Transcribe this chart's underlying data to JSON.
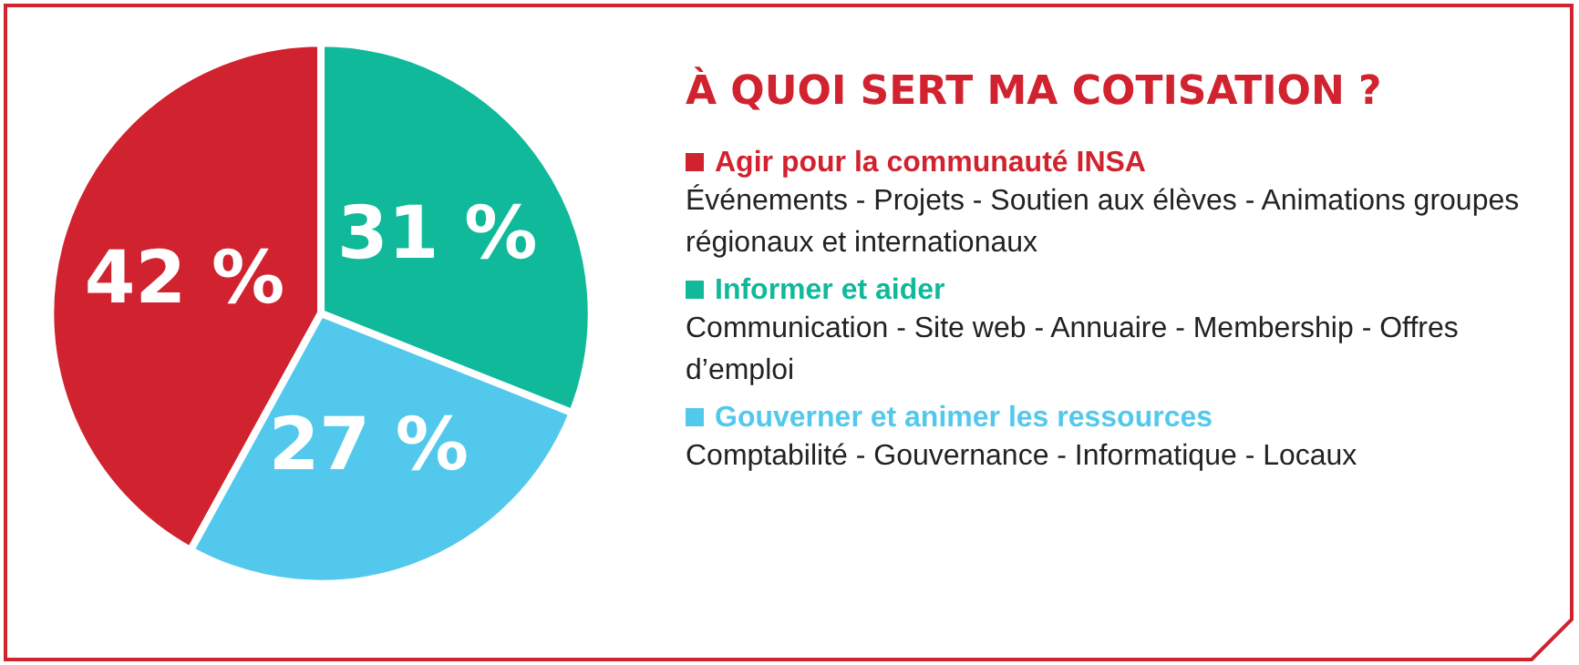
{
  "chart_data": {
    "type": "pie",
    "title": "À QUOI SERT MA COTISATION ?",
    "categories": [
      "Agir pour la communauté INSA",
      "Informer et aider",
      "Gouverner et animer les ressources"
    ],
    "values": [
      42,
      31,
      27
    ],
    "colors": [
      "#d1232f",
      "#10b99a",
      "#52c9ec"
    ],
    "value_labels": [
      "42 %",
      "31 %",
      "27 %"
    ],
    "legend": "right",
    "annotations": [
      "Événements - Projets - Soutien aux élèves - Animations groupes régionaux et internationaux",
      "Communication - Site web - Annuaire - Membership - Offres d’emploi",
      "Comptabilité - Gouvernance - Informatique - Locaux"
    ]
  }
}
